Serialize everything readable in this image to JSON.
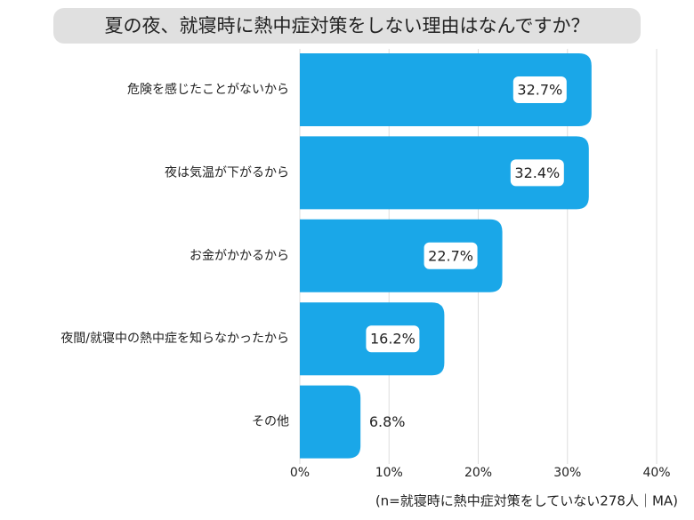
{
  "chart_data": {
    "type": "bar",
    "orientation": "horizontal",
    "title": "夏の夜、就寝時に熱中症対策をしない理由はなんですか？",
    "categories": [
      "危険を感じたことがないから",
      "夜は気温が下がるから",
      "お金がかかるから",
      "夜間/就寝中の熱中症を知らなかったから",
      "その他"
    ],
    "values": [
      32.7,
      32.4,
      22.7,
      16.2,
      6.8
    ],
    "value_labels": [
      "32.7%",
      "32.4%",
      "22.7%",
      "16.2%",
      "6.8%"
    ],
    "color": "#1aa7e8",
    "xlim": [
      0,
      40
    ],
    "xticks": [
      {
        "value": 0,
        "label": "0%"
      },
      {
        "value": 10,
        "label": "10%"
      },
      {
        "value": 20,
        "label": "20%"
      },
      {
        "value": 30,
        "label": "30%"
      },
      {
        "value": 40,
        "label": "40%"
      }
    ],
    "grid": true,
    "note": "(n=就寝時に熱中症対策をしていない278人｜MA)"
  }
}
